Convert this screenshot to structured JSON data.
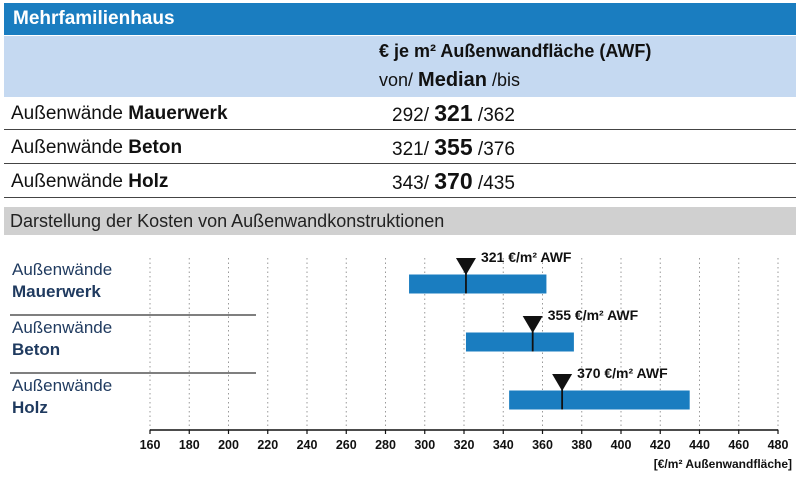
{
  "title": "Mehrfamilienhaus",
  "header": {
    "line1": "€ je m² Außenwandfläche (AWF)",
    "von": "von/",
    "median": "Median",
    "bis": "/bis"
  },
  "table": {
    "rows": [
      {
        "label_prefix": "Außenwände",
        "label_bold": "Mauerwerk",
        "von": "292/",
        "median": "321",
        "bis": "/362"
      },
      {
        "label_prefix": "Außenwände",
        "label_bold": "Beton",
        "von": "321/",
        "median": "355",
        "bis": "/376"
      },
      {
        "label_prefix": "Außenwände",
        "label_bold": "Holz",
        "von": "343/",
        "median": "370",
        "bis": "/435"
      }
    ]
  },
  "section_title": "Darstellung der Kosten von Außenwandkonstruktionen",
  "chart_data": {
    "type": "bar",
    "orientation": "horizontal-range",
    "xlabel": "[€/m² Außenwandfläche]",
    "xlim": [
      160,
      480
    ],
    "xticks": [
      160,
      180,
      200,
      220,
      240,
      260,
      280,
      300,
      320,
      340,
      360,
      380,
      400,
      420,
      440,
      460,
      480
    ],
    "grid": "vertical-dotted",
    "bar_color": "#1a7dc0",
    "categories": [
      {
        "line1": "Außenwände",
        "line2": "Mauerwerk",
        "from": 292,
        "median": 321,
        "to": 362,
        "annotation": "321 €/m² AWF"
      },
      {
        "line1": "Außenwände",
        "line2": "Beton",
        "from": 321,
        "median": 355,
        "to": 376,
        "annotation": "355 €/m² AWF"
      },
      {
        "line1": "Außenwände",
        "line2": "Holz",
        "from": 343,
        "median": 370,
        "to": 435,
        "annotation": "370 €/m² AWF"
      }
    ]
  }
}
